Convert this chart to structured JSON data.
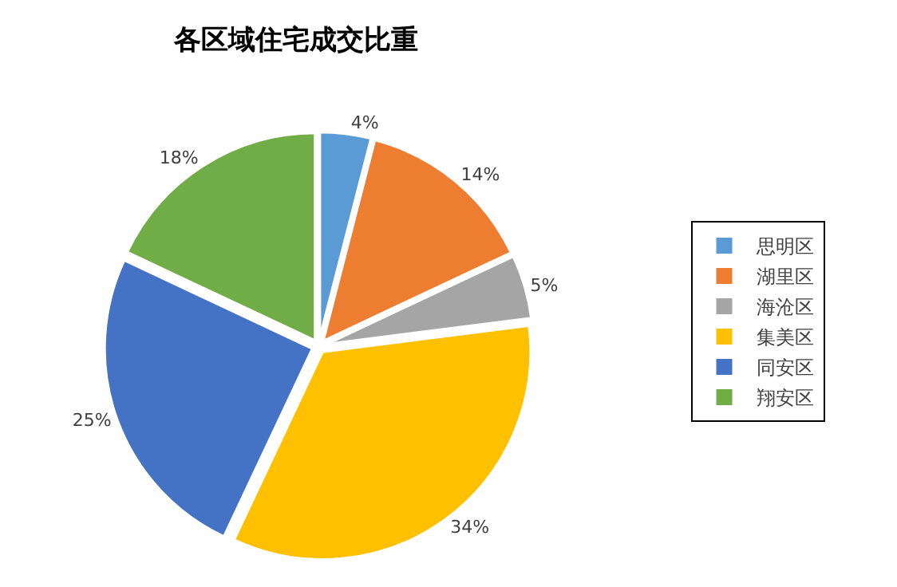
{
  "chart_data": {
    "type": "pie",
    "title": "各区域住宅成交比重",
    "categories": [
      "思明区",
      "湖里区",
      "海沧区",
      "集美区",
      "同安区",
      "翔安区"
    ],
    "values": [
      4,
      14,
      5,
      34,
      25,
      18
    ],
    "value_labels": [
      "4%",
      "14%",
      "5%",
      "34%",
      "25%",
      "18%"
    ],
    "colors": [
      "#5b9bd5",
      "#ed7d31",
      "#a5a5a5",
      "#ffc000",
      "#4472c4",
      "#70ad47"
    ],
    "legend": "right"
  }
}
